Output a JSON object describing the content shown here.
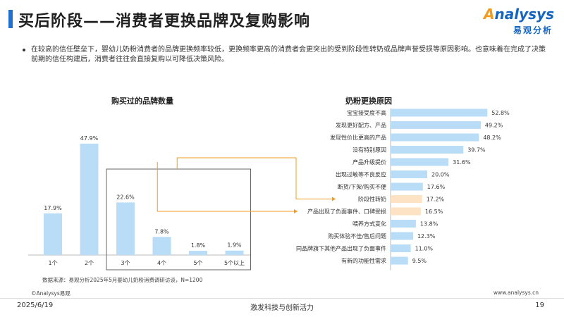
{
  "header": {
    "title": "买后阶段——消费者更换品牌及复购影响",
    "logo_main": "nalysys",
    "logo_main_prefix": "A",
    "logo_sub": "易观分析"
  },
  "summary": "在较高的信任壁垒下，婴幼儿奶粉消费者的品牌更换频率较低，更换频率更高的消费者会更突出的受到阶段性转奶或品牌声誉受损等原因影响。也意味着在完成了决策前期的信任构建后，消费者往往会直接复购以可降低决策风险。",
  "chart_data": [
    {
      "type": "bar",
      "title": "购买过的品牌数量",
      "categories": [
        "1个",
        "2个",
        "3个",
        "4个",
        "5个",
        "5个以上"
      ],
      "values": [
        17.9,
        47.9,
        22.6,
        7.8,
        1.8,
        1.9
      ],
      "value_labels": [
        "17.9%",
        "47.9%",
        "22.6%",
        "7.8%",
        "1.8%",
        "1.9%"
      ],
      "color": "#b9dcf7",
      "highlight_box_categories": [
        "3个",
        "4个",
        "5个",
        "5个以上"
      ]
    },
    {
      "type": "bar",
      "orientation": "horizontal",
      "title": "奶粉更换原因",
      "categories": [
        "宝宝接受度不高",
        "发现更好配方、产品",
        "发现性价比更高的产品",
        "没有特别原因",
        "产品升级提价",
        "出现过敏等不良反应",
        "断货/下架/购买不便",
        "阶段性转奶",
        "产品出现了负面事件、口碑受损",
        "喂养方式变化",
        "购买体验不佳/售后问题",
        "同品牌旗下其他产品出现了负面事件",
        "有新的功能性需求"
      ],
      "values": [
        52.8,
        49.2,
        48.2,
        39.7,
        31.6,
        20.0,
        17.6,
        17.2,
        16.5,
        13.8,
        12.3,
        11.0,
        9.5
      ],
      "value_labels": [
        "52.8%",
        "49.2%",
        "48.2%",
        "39.7%",
        "31.6%",
        "20.0%",
        "17.6%",
        "17.2%",
        "16.5%",
        "13.8%",
        "12.3%",
        "11.0%",
        "9.5%"
      ],
      "color": "#b9dcf7",
      "highlight_color": "#fde3c4",
      "highlight_categories": [
        "阶段性转奶",
        "产品出现了负面事件、口碑受损"
      ],
      "connector_color": "#f29c1f"
    }
  ],
  "footer": {
    "source": "数据来源：易观分析2025年5月婴幼儿奶粉消费调研访谈，N=1200",
    "copyright": "©Analysys易观",
    "website": "www.analysys.cn",
    "date": "2025/6/19",
    "slogan": "激发科技与创新活力",
    "page": "19"
  }
}
